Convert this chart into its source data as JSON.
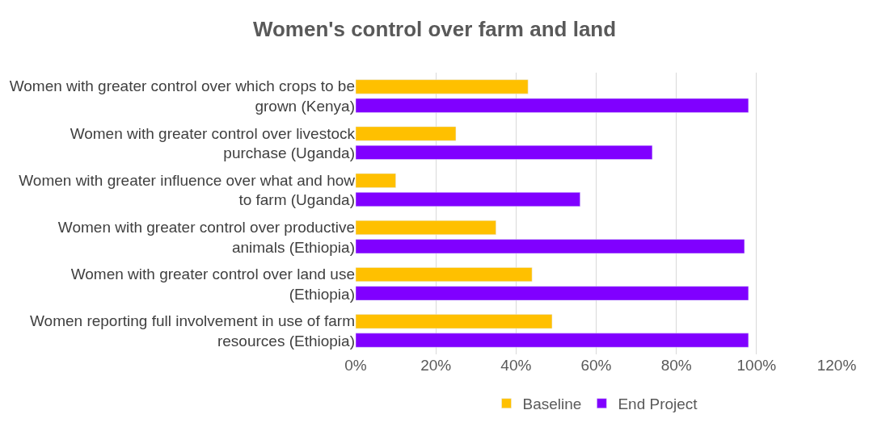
{
  "chart_data": {
    "type": "bar",
    "orientation": "horizontal",
    "title": "Women's control over farm and land",
    "categories": [
      "Women with greater control over which crops to be\ngrown (Kenya)",
      "Women with greater control over livestock\npurchase (Uganda)",
      "Women with greater influence over what and how\nto farm (Uganda)",
      "Women with greater control over productive\nanimals (Ethiopia)",
      "Women with greater control over land use\n(Ethiopia)",
      "Women reporting full involvement in use of farm\nresources (Ethiopia)"
    ],
    "series": [
      {
        "name": "Baseline",
        "color": "#ffc000",
        "values": [
          43,
          25,
          10,
          35,
          44,
          49
        ]
      },
      {
        "name": "End Project",
        "color": "#8000ff",
        "values": [
          98,
          74,
          56,
          97,
          98,
          98
        ]
      }
    ],
    "xlim": [
      0,
      120
    ],
    "xticks": [
      {
        "value": 0,
        "label": "0%"
      },
      {
        "value": 20,
        "label": "20%"
      },
      {
        "value": 40,
        "label": "40%"
      },
      {
        "value": 60,
        "label": "60%"
      },
      {
        "value": 80,
        "label": "80%"
      },
      {
        "value": 100,
        "label": "100%"
      },
      {
        "value": 120,
        "label": "120%"
      }
    ],
    "grid": "x",
    "legend": "bottom"
  }
}
